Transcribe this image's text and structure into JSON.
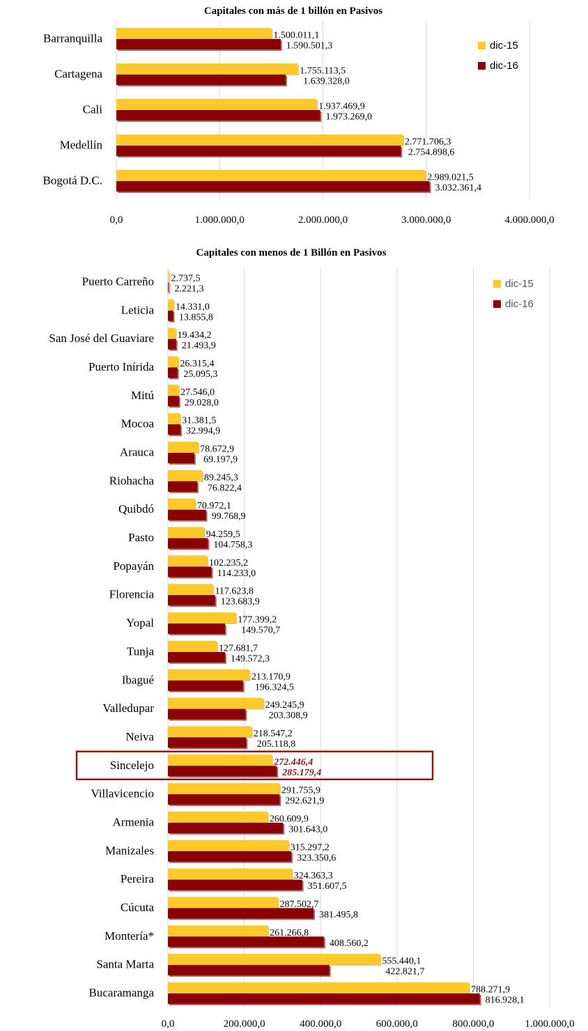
{
  "colors": {
    "dic15": "#FFC928",
    "dic15_shadow": "#C89A10",
    "dic16": "#8B0000",
    "dic16_shadow": "#4A0000",
    "highlight": "#8B1A1A"
  },
  "chart_data": [
    {
      "type": "bar",
      "orientation": "horizontal",
      "title": "Capitales  con más  de 1 billón en Pasivos",
      "categories": [
        "Barranquilla",
        "Cartagena",
        "Cali",
        "Medellín",
        "Bogotá D.C."
      ],
      "series": [
        {
          "name": "dic-15",
          "values": [
            1500011.1,
            1755113.5,
            1937469.9,
            2771706.3,
            2989021.5
          ],
          "labels": [
            "1.500.011,1",
            "1.755.113,5",
            "1.937.469,9",
            "2.771.706,3",
            "2.989.021,5"
          ]
        },
        {
          "name": "dic-16",
          "values": [
            1590501.3,
            1639328.0,
            1973269.0,
            2754898.6,
            3032361.4
          ],
          "labels": [
            "1.590.501,3",
            "1.639.328,0",
            "1.973.269,0",
            "2.754.898,6",
            "3.032.361,4"
          ]
        }
      ],
      "xlim": [
        0,
        4000000
      ],
      "ticks": [
        "0,0",
        "1.000.000,0",
        "2.000.000,0",
        "3.000.000,0",
        "4.000.000,0"
      ],
      "grid": true,
      "legend": "top-right"
    },
    {
      "type": "bar",
      "orientation": "horizontal",
      "title": "Capitales  con menos  de 1 Billón en Pasivos",
      "categories": [
        "Puerto Carreño",
        "Leticia",
        "San José del Guaviare",
        "Puerto Inírida",
        "Mitú",
        "Mocoa",
        "Arauca",
        "Riohacha",
        "Quibdó",
        "Pasto",
        "Popayán",
        "Florencia",
        "Yopal",
        "Tunja",
        "Ibagué",
        "Valledupar",
        "Neiva",
        "Sincelejo",
        "Villavicencio",
        "Armenia",
        "Manizales",
        "Pereira",
        "Cúcuta",
        "Montería*",
        "Santa Marta",
        "Bucaramanga"
      ],
      "series": [
        {
          "name": "dic-15",
          "values": [
            2737.5,
            14331.0,
            19434.2,
            26315.4,
            27546.0,
            31381.5,
            78672.9,
            89245.3,
            70972.1,
            94259.5,
            102235.2,
            117623.8,
            177399.2,
            127681.7,
            213170.9,
            249245.9,
            218547.2,
            272446.4,
            291755.9,
            260609.9,
            315297.2,
            324363.3,
            287502.7,
            261266.8,
            555440.1,
            788271.9
          ],
          "labels": [
            "2.737,5",
            "14.331,0",
            "19.434,2",
            "26.315,4",
            "27.546,0",
            "31.381,5",
            "78.672,9",
            "89.245,3",
            "70.972,1",
            "94.259,5",
            "102.235,2",
            "117.623,8",
            "177.399,2",
            "127.681,7",
            "213.170,9",
            "249.245,9",
            "218.547,2",
            "272.446,4",
            "291.755,9",
            "260.609,9",
            "315.297,2",
            "324.363,3",
            "287.502,7",
            "261.266,8",
            "555.440,1",
            "788.271,9"
          ]
        },
        {
          "name": "dic-16",
          "values": [
            2221.3,
            13855.8,
            21493.9,
            25095.3,
            29028.0,
            32994.9,
            69197.9,
            76822.4,
            99768.9,
            104758.3,
            114233.0,
            123683.9,
            149570.7,
            149572.3,
            196324.5,
            203308.9,
            205118.8,
            285179.4,
            292621.9,
            301643.0,
            323350.6,
            351607.5,
            381495.8,
            408560.2,
            422821.7,
            816928.1
          ],
          "labels": [
            "2.221,3",
            "13.855,8",
            "21.493,9",
            "25.095,3",
            "29.028,0",
            "32.994,9",
            "69.197,9",
            "76.822,4",
            "99.768,9",
            "104.758,3",
            "114.233,0",
            "123.683,9",
            "149.570,7",
            "149.572,3",
            "196.324,5",
            "203.308,9",
            "205.118,8",
            "285.179,4",
            "292.621,9",
            "301.643,0",
            "323.350,6",
            "351.607,5",
            "381.495,8",
            "408.560,2",
            "422.821,7",
            "816.928,1"
          ]
        }
      ],
      "highlight_category": "Sincelejo",
      "xlim": [
        0,
        1000000
      ],
      "ticks": [
        "0,0",
        "200.000,0",
        "400.000,0",
        "600.000,0",
        "800.000,0",
        "1.000.000,0"
      ],
      "grid": true,
      "legend": "top-right"
    }
  ]
}
